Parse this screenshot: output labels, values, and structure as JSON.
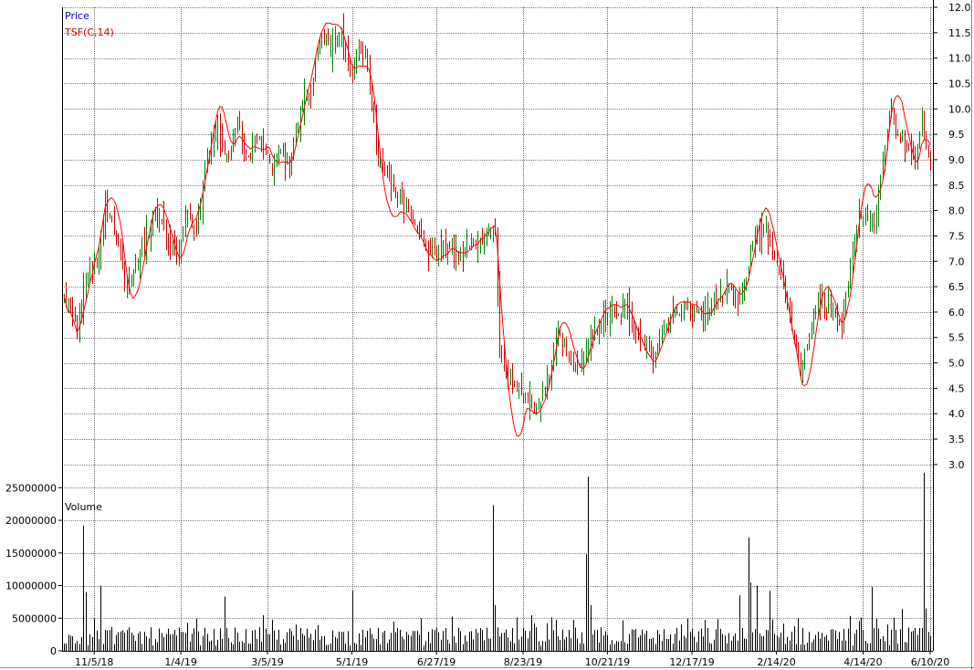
{
  "chart_data": {
    "type": "line",
    "price_panel": {
      "legend": [
        {
          "label": "Price",
          "color": "#0000cc"
        },
        {
          "label": "TSF(C,14)",
          "color": "#cc0000"
        }
      ],
      "y_ticks": [
        "12.0",
        "11.5",
        "11.0",
        "10.5",
        "10.0",
        "9.5",
        "9.0",
        "8.5",
        "8.0",
        "7.5",
        "7.0",
        "6.5",
        "6.0",
        "5.5",
        "5.0",
        "4.5",
        "4.0",
        "3.5",
        "3.0"
      ],
      "ylim": [
        2.8,
        12.0
      ],
      "up_color": "#008000",
      "down_color": "#cc0000",
      "tsf_color": "#ff0000",
      "close_anchors": [
        {
          "i": 0,
          "v": 6.3
        },
        {
          "i": 6,
          "v": 5.7
        },
        {
          "i": 12,
          "v": 6.9
        },
        {
          "i": 16,
          "v": 7.1
        },
        {
          "i": 19,
          "v": 8.1
        },
        {
          "i": 24,
          "v": 7.6
        },
        {
          "i": 28,
          "v": 6.5
        },
        {
          "i": 34,
          "v": 7.0
        },
        {
          "i": 42,
          "v": 7.9
        },
        {
          "i": 48,
          "v": 7.5
        },
        {
          "i": 52,
          "v": 7.1
        },
        {
          "i": 57,
          "v": 7.9
        },
        {
          "i": 61,
          "v": 7.7
        },
        {
          "i": 66,
          "v": 9.1
        },
        {
          "i": 70,
          "v": 9.6
        },
        {
          "i": 76,
          "v": 9.0
        },
        {
          "i": 80,
          "v": 9.8
        },
        {
          "i": 84,
          "v": 8.9
        },
        {
          "i": 88,
          "v": 9.4
        },
        {
          "i": 92,
          "v": 9.3
        },
        {
          "i": 96,
          "v": 8.8
        },
        {
          "i": 100,
          "v": 9.2
        },
        {
          "i": 104,
          "v": 8.9
        },
        {
          "i": 110,
          "v": 10.1
        },
        {
          "i": 114,
          "v": 10.4
        },
        {
          "i": 118,
          "v": 11.3
        },
        {
          "i": 124,
          "v": 11.3
        },
        {
          "i": 128,
          "v": 11.5
        },
        {
          "i": 132,
          "v": 10.6
        },
        {
          "i": 136,
          "v": 11.2
        },
        {
          "i": 140,
          "v": 10.9
        },
        {
          "i": 145,
          "v": 9.0
        },
        {
          "i": 150,
          "v": 8.6
        },
        {
          "i": 154,
          "v": 8.3
        },
        {
          "i": 158,
          "v": 8.1
        },
        {
          "i": 162,
          "v": 7.8
        },
        {
          "i": 167,
          "v": 7.3
        },
        {
          "i": 172,
          "v": 7.2
        },
        {
          "i": 177,
          "v": 7.3
        },
        {
          "i": 182,
          "v": 7.1
        },
        {
          "i": 187,
          "v": 7.3
        },
        {
          "i": 192,
          "v": 7.4
        },
        {
          "i": 197,
          "v": 7.7
        },
        {
          "i": 199,
          "v": 7.6
        },
        {
          "i": 201,
          "v": 5.2
        },
        {
          "i": 204,
          "v": 4.9
        },
        {
          "i": 208,
          "v": 4.5
        },
        {
          "i": 212,
          "v": 4.4
        },
        {
          "i": 216,
          "v": 4.1
        },
        {
          "i": 220,
          "v": 4.3
        },
        {
          "i": 224,
          "v": 4.7
        },
        {
          "i": 228,
          "v": 5.6
        },
        {
          "i": 232,
          "v": 5.2
        },
        {
          "i": 236,
          "v": 4.9
        },
        {
          "i": 240,
          "v": 5.2
        },
        {
          "i": 244,
          "v": 5.5
        },
        {
          "i": 248,
          "v": 5.8
        },
        {
          "i": 252,
          "v": 6.0
        },
        {
          "i": 256,
          "v": 5.9
        },
        {
          "i": 260,
          "v": 6.1
        },
        {
          "i": 264,
          "v": 5.6
        },
        {
          "i": 268,
          "v": 5.4
        },
        {
          "i": 272,
          "v": 5.2
        },
        {
          "i": 276,
          "v": 5.6
        },
        {
          "i": 280,
          "v": 5.9
        },
        {
          "i": 284,
          "v": 6.0
        },
        {
          "i": 288,
          "v": 6.1
        },
        {
          "i": 292,
          "v": 6.0
        },
        {
          "i": 296,
          "v": 5.9
        },
        {
          "i": 300,
          "v": 6.2
        },
        {
          "i": 304,
          "v": 6.3
        },
        {
          "i": 308,
          "v": 6.5
        },
        {
          "i": 312,
          "v": 6.2
        },
        {
          "i": 316,
          "v": 7.0
        },
        {
          "i": 320,
          "v": 7.5
        },
        {
          "i": 324,
          "v": 7.6
        },
        {
          "i": 328,
          "v": 7.1
        },
        {
          "i": 332,
          "v": 6.6
        },
        {
          "i": 336,
          "v": 5.8
        },
        {
          "i": 340,
          "v": 4.8
        },
        {
          "i": 344,
          "v": 5.5
        },
        {
          "i": 348,
          "v": 6.2
        },
        {
          "i": 352,
          "v": 6.1
        },
        {
          "i": 356,
          "v": 5.9
        },
        {
          "i": 359,
          "v": 5.8
        },
        {
          "i": 363,
          "v": 6.8
        },
        {
          "i": 367,
          "v": 8.0
        },
        {
          "i": 371,
          "v": 7.9
        },
        {
          "i": 374,
          "v": 7.7
        },
        {
          "i": 378,
          "v": 9.0
        },
        {
          "i": 381,
          "v": 9.9
        },
        {
          "i": 385,
          "v": 9.5
        },
        {
          "i": 389,
          "v": 9.3
        },
        {
          "i": 393,
          "v": 9.1
        },
        {
          "i": 396,
          "v": 9.8
        },
        {
          "i": 398,
          "v": 9.3
        },
        {
          "i": 400,
          "v": 8.9
        }
      ],
      "n_bars": 401
    },
    "volume_panel": {
      "label": "Volume",
      "y_ticks": [
        "25000000",
        "20000000",
        "15000000",
        "10000000",
        "5000000",
        "0"
      ],
      "ylim": [
        0,
        27000000
      ],
      "spikes": [
        {
          "i": 9,
          "v": 19200000
        },
        {
          "i": 10,
          "v": 9000000
        },
        {
          "i": 17,
          "v": 10000000
        },
        {
          "i": 74,
          "v": 8300000
        },
        {
          "i": 133,
          "v": 9200000
        },
        {
          "i": 198,
          "v": 22300000
        },
        {
          "i": 199,
          "v": 7000000
        },
        {
          "i": 241,
          "v": 14800000
        },
        {
          "i": 242,
          "v": 26700000
        },
        {
          "i": 243,
          "v": 7000000
        },
        {
          "i": 312,
          "v": 8500000
        },
        {
          "i": 316,
          "v": 17400000
        },
        {
          "i": 317,
          "v": 10500000
        },
        {
          "i": 320,
          "v": 10000000
        },
        {
          "i": 326,
          "v": 9200000
        },
        {
          "i": 373,
          "v": 9800000
        },
        {
          "i": 387,
          "v": 6400000
        },
        {
          "i": 397,
          "v": 27300000
        },
        {
          "i": 398,
          "v": 6500000
        }
      ]
    },
    "x_tick_labels": [
      "11/5/18",
      "1/4/19",
      "3/5/19",
      "5/1/19",
      "6/27/19",
      "8/23/19",
      "10/21/19",
      "12/17/19",
      "2/14/20",
      "4/14/20",
      "6/10/20"
    ],
    "x_tick_bars": [
      14,
      54,
      94,
      133,
      172,
      212,
      251,
      290,
      329,
      369,
      400
    ]
  }
}
